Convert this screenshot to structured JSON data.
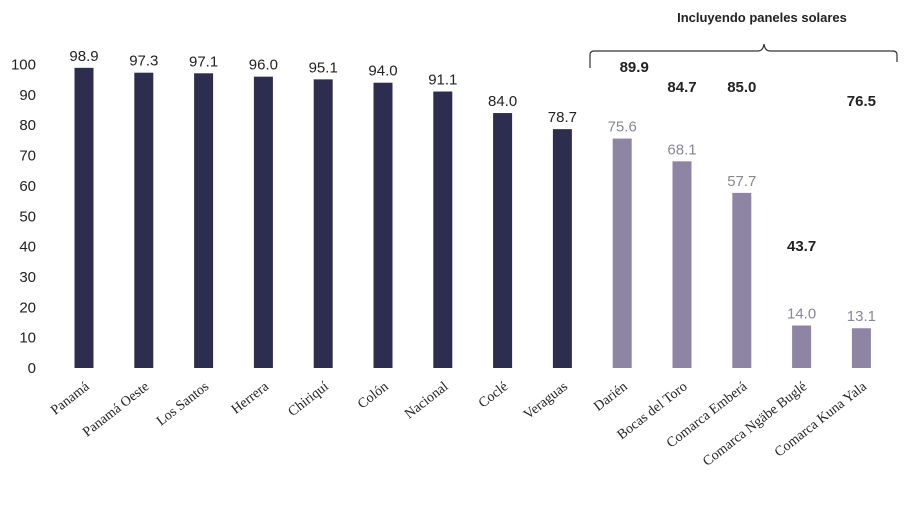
{
  "chart_data": {
    "type": "bar",
    "title": "",
    "xlabel": "",
    "ylabel": "",
    "ylim": [
      0,
      100
    ],
    "yticks": [
      0,
      10,
      20,
      30,
      40,
      50,
      60,
      70,
      80,
      90,
      100
    ],
    "grid": false,
    "categories": [
      "Panamá",
      "Panamá Oeste",
      "Los Santos",
      "Herrera",
      "Chiriquí",
      "Colón",
      "Nacional",
      "Coclé",
      "Veraguas",
      "Darién",
      "Bocas del Toro",
      "Comarca Emberá",
      "Comarca Ngäbe Buglé",
      "Comarca Kuna Yala"
    ],
    "values": [
      98.9,
      97.3,
      97.1,
      96.0,
      95.1,
      94.0,
      91.1,
      84.0,
      78.7,
      75.6,
      68.1,
      57.7,
      14.0,
      13.1
    ],
    "value_labels": [
      "98.9",
      "97.3",
      "97.1",
      "96.0",
      "95.1",
      "94.0",
      "91.1",
      "84.0",
      "78.7",
      "75.6",
      "68.1",
      "57.7",
      "14.0",
      "13.1"
    ],
    "bar_colors": [
      "#2d2e4f",
      "#2d2e4f",
      "#2d2e4f",
      "#2d2e4f",
      "#2d2e4f",
      "#2d2e4f",
      "#2d2e4f",
      "#2d2e4f",
      "#2d2e4f",
      "#8e84a4",
      "#8e84a4",
      "#8e84a4",
      "#8e84a4",
      "#8e84a4"
    ],
    "including_solar": {
      "label": "Incluyendo paneles solares",
      "categories": [
        "Darién",
        "Bocas del Toro",
        "Comarca Emberá",
        "Comarca Ngäbe Buglé",
        "Comarca Kuna Yala"
      ],
      "values": [
        89.9,
        84.7,
        85.0,
        43.7,
        76.5
      ],
      "value_labels": [
        "89.9",
        "84.7",
        "85.0",
        "43.7",
        "76.5"
      ]
    }
  }
}
